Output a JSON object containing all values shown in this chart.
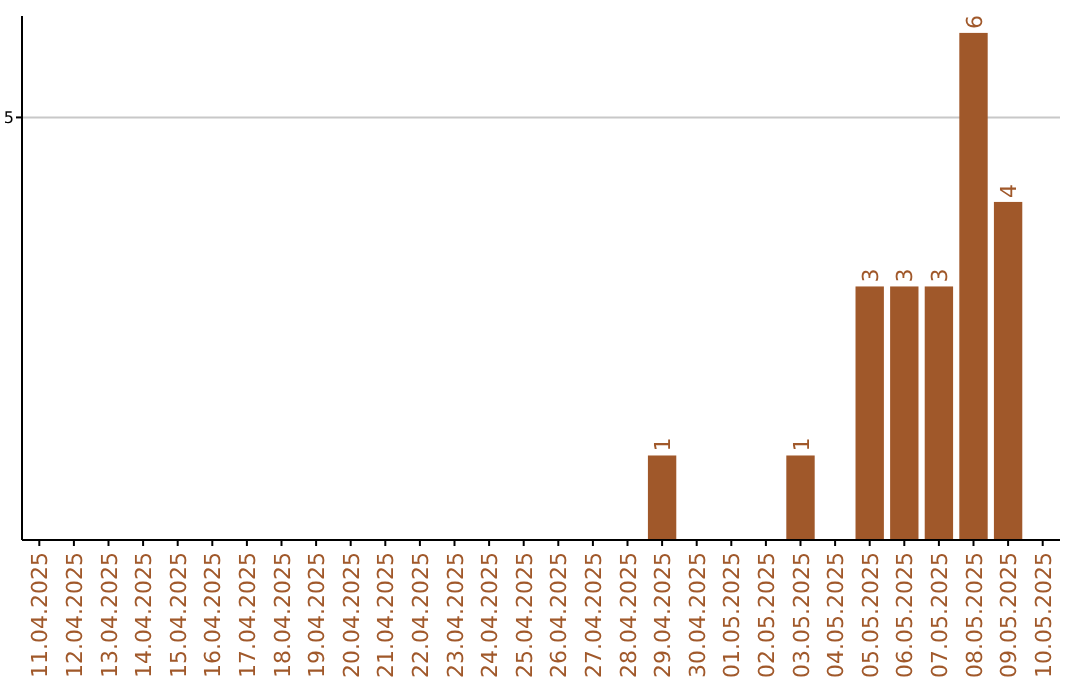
{
  "chart_data": {
    "type": "bar",
    "categories": [
      "11.04.2025",
      "12.04.2025",
      "13.04.2025",
      "14.04.2025",
      "15.04.2025",
      "16.04.2025",
      "17.04.2025",
      "18.04.2025",
      "19.04.2025",
      "20.04.2025",
      "21.04.2025",
      "22.04.2025",
      "23.04.2025",
      "24.04.2025",
      "25.04.2025",
      "26.04.2025",
      "27.04.2025",
      "28.04.2025",
      "29.04.2025",
      "30.04.2025",
      "01.05.2025",
      "02.05.2025",
      "03.05.2025",
      "04.05.2025",
      "05.05.2025",
      "06.05.2025",
      "07.05.2025",
      "08.05.2025",
      "09.05.2025",
      "10.05.2025"
    ],
    "values": [
      null,
      null,
      null,
      null,
      null,
      null,
      null,
      null,
      null,
      null,
      null,
      null,
      null,
      null,
      null,
      null,
      null,
      null,
      1,
      null,
      null,
      null,
      1,
      null,
      3,
      3,
      3,
      6,
      4,
      null
    ],
    "data_labels": true,
    "color": "#a0582a",
    "ylim": [
      0,
      6.2
    ],
    "yticks": [
      5
    ],
    "grid": "y"
  }
}
